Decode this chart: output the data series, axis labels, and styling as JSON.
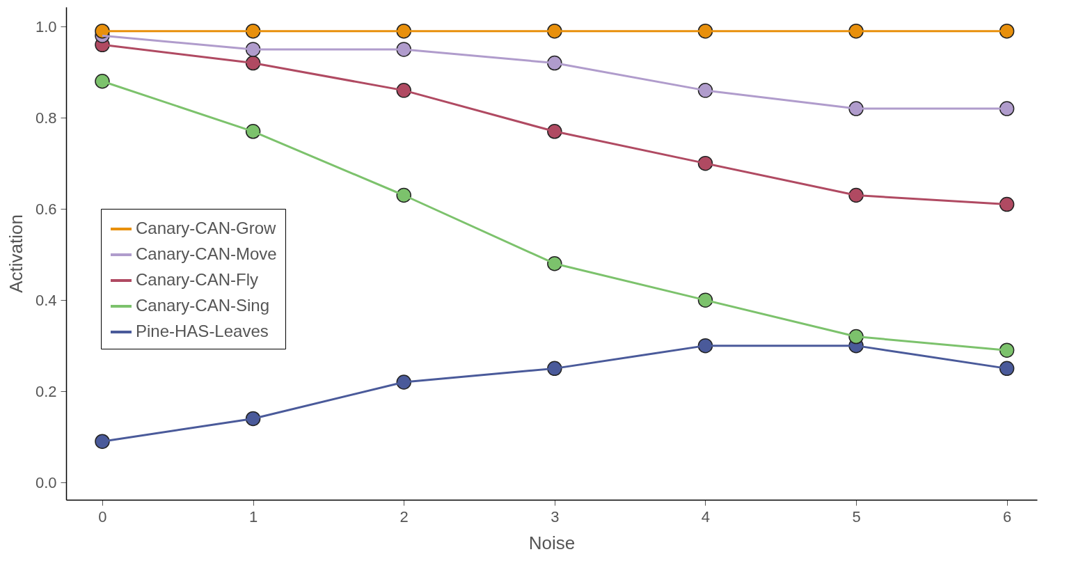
{
  "chart_data": {
    "type": "line",
    "xlabel": "Noise",
    "ylabel": "Activation",
    "x": [
      0,
      1,
      2,
      3,
      4,
      5,
      6
    ],
    "xlim": [
      -0.24,
      6.2
    ],
    "xticks": [
      0,
      1,
      2,
      3,
      4,
      5,
      6
    ],
    "ylim": [
      -0.038,
      1.043
    ],
    "yticks": [
      {
        "value": 0,
        "label": "0.0"
      },
      0.2,
      0.4,
      0.6,
      0.8,
      {
        "value": 1,
        "label": "1.0"
      }
    ],
    "marker": "circle",
    "legend": "left",
    "grid": false,
    "series": [
      {
        "name": "Canary-CAN-Grow",
        "color": "#e8900c",
        "values": [
          0.99,
          0.99,
          0.99,
          0.99,
          0.99,
          0.99,
          0.99
        ]
      },
      {
        "name": "Canary-CAN-Move",
        "color": "#b09ccc",
        "values": [
          0.98,
          0.95,
          0.95,
          0.92,
          0.86,
          0.82,
          0.82
        ]
      },
      {
        "name": "Canary-CAN-Fly",
        "color": "#b04a62",
        "values": [
          0.96,
          0.92,
          0.86,
          0.77,
          0.7,
          0.63,
          0.61
        ]
      },
      {
        "name": "Canary-CAN-Sing",
        "color": "#7cc26c",
        "values": [
          0.88,
          0.77,
          0.63,
          0.48,
          0.4,
          0.32,
          0.29
        ]
      },
      {
        "name": "Pine-HAS-Leaves",
        "color": "#4a5a9a",
        "values": [
          0.09,
          0.14,
          0.22,
          0.25,
          0.3,
          0.3,
          0.25
        ]
      }
    ]
  }
}
